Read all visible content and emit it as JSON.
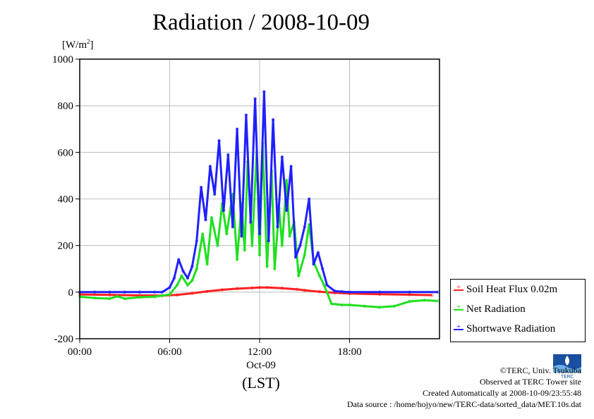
{
  "title": "Radiation / 2008-10-09",
  "ylabel_text": "[W/m",
  "ylabel_sup": "2",
  "ylabel_close": "]",
  "date_label": "Oct-09",
  "tz_label": "(LST)",
  "footer": {
    "line1": "©TERC, Univ. Tsukuba",
    "line2": "Observed at TERC Tower site",
    "line3": "Created Automatically at 2008-10-09/23:55:48",
    "line4": "Data source : /home/hojyo/new/TERC-data/sorted_data/MET.10s.dat"
  },
  "logo_text": "TERC",
  "chart_data": {
    "type": "line",
    "title": "Radiation / 2008-10-09",
    "ylabel": "[W/m2]",
    "xlabel": "(LST)",
    "xlim": [
      0,
      24
    ],
    "ylim": [
      -200,
      1000
    ],
    "x_ticks": [
      0,
      6,
      12,
      18
    ],
    "x_tick_labels": [
      "00:00",
      "06:00",
      "12:00",
      "18:00"
    ],
    "y_ticks": [
      -200,
      0,
      200,
      400,
      600,
      800,
      1000
    ],
    "y_tick_labels": [
      "-200",
      "0",
      "200",
      "400",
      "600",
      "800",
      "1000"
    ],
    "grid": true,
    "legend_position": "bottom-right outside",
    "series": [
      {
        "name": "Soil Heat Flux 0.02m",
        "color": "#ff2020",
        "x": [
          0,
          2,
          4,
          5.5,
          6.5,
          7.5,
          8.5,
          9.5,
          10.5,
          11.5,
          12,
          12.5,
          13.5,
          14.5,
          15,
          16,
          17,
          18,
          20,
          22,
          23.5
        ],
        "y": [
          -10,
          -12,
          -14,
          -15,
          -12,
          -5,
          3,
          10,
          15,
          18,
          20,
          20,
          17,
          12,
          8,
          2,
          -3,
          -6,
          -9,
          -11,
          -13
        ]
      },
      {
        "name": "Net Radiation",
        "color": "#20e020",
        "x": [
          0,
          1,
          2,
          2.5,
          3,
          4,
          5,
          6,
          6.5,
          6.8,
          7.2,
          7.5,
          7.8,
          8.2,
          8.5,
          8.8,
          9.2,
          9.5,
          9.8,
          10.2,
          10.5,
          10.8,
          11,
          11.2,
          11.5,
          11.8,
          12,
          12.2,
          12.5,
          12.8,
          13,
          13.3,
          13.5,
          13.8,
          14,
          14.3,
          14.6,
          15,
          15.3,
          15.6,
          16,
          16.3,
          16.8,
          17.5,
          18,
          19,
          20,
          21,
          22,
          23,
          23.9
        ],
        "y": [
          -20,
          -25,
          -28,
          -18,
          -28,
          -22,
          -20,
          -10,
          30,
          70,
          30,
          50,
          100,
          250,
          120,
          320,
          200,
          380,
          250,
          420,
          140,
          380,
          180,
          560,
          200,
          600,
          160,
          640,
          110,
          520,
          100,
          360,
          200,
          480,
          240,
          300,
          70,
          160,
          290,
          130,
          70,
          30,
          -50,
          -55,
          -55,
          -60,
          -65,
          -60,
          -40,
          -35,
          -38
        ]
      },
      {
        "name": "Shortwave Radiation",
        "color": "#2020ff",
        "x": [
          0,
          1,
          2,
          3,
          4,
          5,
          5.5,
          6,
          6.3,
          6.6,
          6.9,
          7.2,
          7.5,
          7.8,
          8.1,
          8.4,
          8.7,
          9,
          9.3,
          9.6,
          9.9,
          10.2,
          10.5,
          10.8,
          11.1,
          11.4,
          11.7,
          12,
          12.3,
          12.6,
          12.9,
          13.2,
          13.5,
          13.8,
          14.1,
          14.4,
          14.7,
          15,
          15.3,
          15.6,
          15.9,
          16.2,
          16.5,
          17,
          17.5,
          18,
          20,
          22,
          23.9
        ],
        "y": [
          0,
          0,
          0,
          0,
          0,
          0,
          0,
          20,
          60,
          140,
          90,
          60,
          110,
          220,
          450,
          310,
          540,
          420,
          650,
          350,
          590,
          280,
          700,
          240,
          760,
          300,
          830,
          250,
          860,
          220,
          740,
          280,
          580,
          350,
          540,
          150,
          200,
          280,
          400,
          120,
          170,
          100,
          30,
          5,
          2,
          0,
          0,
          0,
          0
        ]
      }
    ]
  }
}
